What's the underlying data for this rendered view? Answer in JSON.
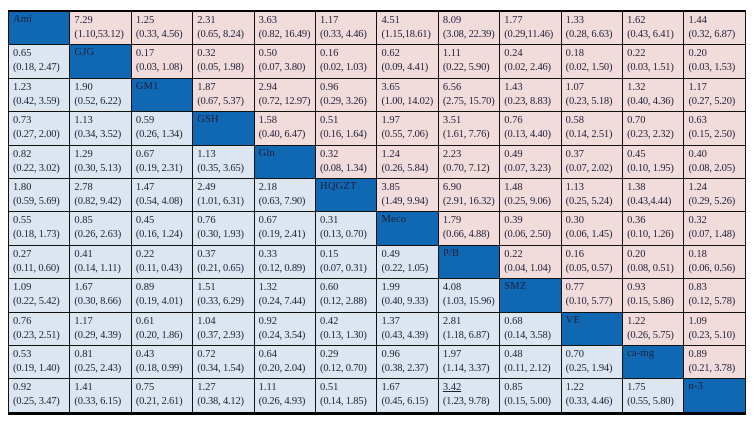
{
  "colors": {
    "diagonal_fill": "#1168b2",
    "upper_triangle_fill": "#f2dcdb",
    "lower_triangle_fill": "#dce6f1",
    "border": "#000000",
    "text": "#1e1e38"
  },
  "chart_data": {
    "type": "table",
    "treatments": [
      "Ami",
      "GJG",
      "GM1",
      "GSH",
      "Gln",
      "HQGZT",
      "Meco",
      "P/B",
      "SMZ",
      "VE",
      "ca-mg",
      "n-3"
    ],
    "matrix": [
      [
        {
          "label": "Ami"
        },
        {
          "est": "7.29",
          "ci": "(1.10,53.12)"
        },
        {
          "est": "1.25",
          "ci": "(0.33, 4.56)"
        },
        {
          "est": "2.31",
          "ci": "(0.65, 8.24)"
        },
        {
          "est": "3.63",
          "ci": "(0.82, 16.49)"
        },
        {
          "est": "1.17",
          "ci": "(0.33, 4.46)"
        },
        {
          "est": "4.51",
          "ci": "(1.15,18.61)"
        },
        {
          "est": "8.09",
          "ci": "(3.08, 22.39)"
        },
        {
          "est": "1.77",
          "ci": "(0.29,11.46)"
        },
        {
          "est": "1.33",
          "ci": "(0.28, 6.63)"
        },
        {
          "est": "1.62",
          "ci": "(0.43, 6.41)"
        },
        {
          "est": "1.44",
          "ci": "(0.32, 6.87)"
        }
      ],
      [
        {
          "est": "0.65",
          "ci": "(0.18, 2.47)"
        },
        {
          "label": "GJG"
        },
        {
          "est": "0.17",
          "ci": "(0.03, 1.08)"
        },
        {
          "est": "0.32",
          "ci": "(0.05, 1.98)"
        },
        {
          "est": "0.50",
          "ci": "(0.07, 3.80)"
        },
        {
          "est": "0.16",
          "ci": "(0.02, 1.03)"
        },
        {
          "est": "0.62",
          "ci": "(0.09, 4.41)"
        },
        {
          "est": "1.11",
          "ci": "(0.22, 5.90)"
        },
        {
          "est": "0.24",
          "ci": "(0.02, 2.46)"
        },
        {
          "est": "0.18",
          "ci": "(0.02, 1.50)"
        },
        {
          "est": "0.22",
          "ci": "(0.03, 1.51)"
        },
        {
          "est": "0.20",
          "ci": "(0.03, 1.53)"
        }
      ],
      [
        {
          "est": "1.23",
          "ci": "(0.42, 3.59)"
        },
        {
          "est": "1.90",
          "ci": "(0.52, 6.22)"
        },
        {
          "label": "GM1"
        },
        {
          "est": "1.87",
          "ci": "(0.67, 5.37)"
        },
        {
          "est": "2.94",
          "ci": "(0.72, 12.97)"
        },
        {
          "est": "0.96",
          "ci": "(0.29, 3.26)"
        },
        {
          "est": "3.65",
          "ci": "(1.00, 14.02)"
        },
        {
          "est": "6.56",
          "ci": "(2.75, 15.70)"
        },
        {
          "est": "1.43",
          "ci": "(0.23, 8.83)"
        },
        {
          "est": "1.07",
          "ci": "(0.23, 5.18)"
        },
        {
          "est": "1.32",
          "ci": "(0.40, 4.36)"
        },
        {
          "est": "1.17",
          "ci": "(0.27, 5.20)"
        }
      ],
      [
        {
          "est": "0.73",
          "ci": "(0.27, 2.00)"
        },
        {
          "est": "1.13",
          "ci": "(0.34, 3.52)"
        },
        {
          "est": "0.59",
          "ci": "(0.26, 1.34)"
        },
        {
          "label": "GSH"
        },
        {
          "est": "1.58",
          "ci": "(0.40, 6.47)"
        },
        {
          "est": "0.51",
          "ci": "(0.16, 1.64)"
        },
        {
          "est": "1.97",
          "ci": "(0.55, 7.06)"
        },
        {
          "est": "3.51",
          "ci": "(1.61, 7.76)"
        },
        {
          "est": "0.76",
          "ci": "(0.13, 4.40)"
        },
        {
          "est": "0.58",
          "ci": "(0.14, 2.51)"
        },
        {
          "est": "0.70",
          "ci": "(0.23, 2.32)"
        },
        {
          "est": "0.63",
          "ci": "(0.15, 2.50)"
        }
      ],
      [
        {
          "est": "0.82",
          "ci": "(0.22, 3.02)"
        },
        {
          "est": "1.29",
          "ci": "(0.30, 5.13)"
        },
        {
          "est": "0.67",
          "ci": "(0.19, 2.31)"
        },
        {
          "est": "1.13",
          "ci": "(0.35, 3.65)"
        },
        {
          "label": "Gln"
        },
        {
          "est": "0.32",
          "ci": "(0.08, 1.34)"
        },
        {
          "est": "1.24",
          "ci": "(0.26, 5.84)"
        },
        {
          "est": "2.23",
          "ci": "(0.70, 7.12)"
        },
        {
          "est": "0.49",
          "ci": "(0.07, 3.23)"
        },
        {
          "est": "0.37",
          "ci": "(0.07, 2.02)"
        },
        {
          "est": "0.45",
          "ci": "(0.10, 1.95)"
        },
        {
          "est": "0.40",
          "ci": "(0.08, 2.05)"
        }
      ],
      [
        {
          "est": "1.80",
          "ci": "(0.59, 5.69)"
        },
        {
          "est": "2.78",
          "ci": "(0.82, 9.42)"
        },
        {
          "est": "1.47",
          "ci": "(0.54, 4.08)"
        },
        {
          "est": "2.49",
          "ci": "(1.01, 6.31)"
        },
        {
          "est": "2.18",
          "ci": "(0.63, 7.90)"
        },
        {
          "label": "HQGZT"
        },
        {
          "est": "3.85",
          "ci": "(1.49, 9.94)"
        },
        {
          "est": "6.90",
          "ci": "(2.91, 16.32)"
        },
        {
          "est": "1.48",
          "ci": "(0.25, 9.06)"
        },
        {
          "est": "1.13",
          "ci": "(0.25, 5.24)"
        },
        {
          "est": "1.38",
          "ci": "(0.43,4.44)"
        },
        {
          "est": "1.24",
          "ci": "(0.29, 5.26)"
        }
      ],
      [
        {
          "est": "0.55",
          "ci": "(0.18, 1.73)"
        },
        {
          "est": "0.85",
          "ci": "(0.26, 2.63)"
        },
        {
          "est": "0.45",
          "ci": "(0.16, 1.24)"
        },
        {
          "est": "0.76",
          "ci": "(0.30, 1.93)"
        },
        {
          "est": "0.67",
          "ci": "(0.19, 2.41)"
        },
        {
          "est": "0.31",
          "ci": "(0.13, 0.70)"
        },
        {
          "label": "Meco"
        },
        {
          "est": "1.79",
          "ci": "(0.66, 4.88)"
        },
        {
          "est": "0.39",
          "ci": "(0.06, 2.50)"
        },
        {
          "est": "0.30",
          "ci": "(0.06, 1.45)"
        },
        {
          "est": "0.36",
          "ci": "(0.10, 1.26)"
        },
        {
          "est": "0.32",
          "ci": "(0.07, 1.48)"
        }
      ],
      [
        {
          "est": "0.27",
          "ci": "(0.11, 0.60)"
        },
        {
          "est": "0.41",
          "ci": "(0.14, 1.11)"
        },
        {
          "est": "0.22",
          "ci": "(0.11, 0.43)"
        },
        {
          "est": "0.37",
          "ci": "(0.21, 0.65)"
        },
        {
          "est": "0.33",
          "ci": "(0.12, 0.89)"
        },
        {
          "est": "0.15",
          "ci": "(0.07, 0.31)"
        },
        {
          "est": "0.49",
          "ci": "(0.22, 1.05)"
        },
        {
          "label": "P/B"
        },
        {
          "est": "0.22",
          "ci": "(0.04, 1.04)"
        },
        {
          "est": "0.16",
          "ci": "(0.05, 0.57)"
        },
        {
          "est": "0.20",
          "ci": "(0.08, 0.51)"
        },
        {
          "est": "0.18",
          "ci": "(0.06, 0.56)"
        }
      ],
      [
        {
          "est": "1.09",
          "ci": "(0.22, 5.42)"
        },
        {
          "est": "1.67",
          "ci": "(0.30, 8.66)"
        },
        {
          "est": "0.89",
          "ci": "(0.19, 4.01)"
        },
        {
          "est": "1.51",
          "ci": "(0.33, 6.29)"
        },
        {
          "est": "1.32",
          "ci": "(0.24, 7.44)"
        },
        {
          "est": "0.60",
          "ci": "(0.12, 2.88)"
        },
        {
          "est": "1.99",
          "ci": "(0.40, 9.33)"
        },
        {
          "est": "4.08",
          "ci": "(1.03, 15.96)"
        },
        {
          "label": "SMZ"
        },
        {
          "est": "0.77",
          "ci": "(0.10, 5.77)"
        },
        {
          "est": "0.93",
          "ci": "(0.15, 5.86)"
        },
        {
          "est": "0.83",
          "ci": "(0.12, 5.78)"
        }
      ],
      [
        {
          "est": "0.76",
          "ci": "(0.23, 2.51)"
        },
        {
          "est": "1.17",
          "ci": "(0.29, 4.39)"
        },
        {
          "est": "0.61",
          "ci": "(0.20, 1.86)"
        },
        {
          "est": "1.04",
          "ci": "(0.37, 2.93)"
        },
        {
          "est": "0.92",
          "ci": "(0.24, 3.54)"
        },
        {
          "est": "0.42",
          "ci": "(0.13, 1.30)"
        },
        {
          "est": "1.37",
          "ci": "(0.43, 4.39)"
        },
        {
          "est": "2.81",
          "ci": "(1.18, 6.87)"
        },
        {
          "est": "0.68",
          "ci": "(0.14, 3.58)"
        },
        {
          "label": "VE"
        },
        {
          "est": "1.22",
          "ci": "(0.26, 5.75)"
        },
        {
          "est": "1.09",
          "ci": "(0.23, 5.10)"
        }
      ],
      [
        {
          "est": "0.53",
          "ci": "(0.19, 1.40)"
        },
        {
          "est": "0.81",
          "ci": "(0.25, 2.43)"
        },
        {
          "est": "0.43",
          "ci": "(0.18, 0.99)"
        },
        {
          "est": "0.72",
          "ci": "(0.34, 1.54)"
        },
        {
          "est": "0.64",
          "ci": "(0.20, 2.04)"
        },
        {
          "est": "0.29",
          "ci": "(0.12, 0.70)"
        },
        {
          "est": "0.96",
          "ci": "(0.38, 2.37)"
        },
        {
          "est": "1.97",
          "ci": "(1.14, 3.37)"
        },
        {
          "est": "0.48",
          "ci": "(0.11, 2.12)"
        },
        {
          "est": "0.70",
          "ci": "(0.25, 1.94)"
        },
        {
          "label": "ca-mg"
        },
        {
          "est": "0.89",
          "ci": "(0.21, 3.78)"
        }
      ],
      [
        {
          "est": "0.92",
          "ci": "(0.25, 3.47)"
        },
        {
          "est": "1.41",
          "ci": "(0.33, 6.15)"
        },
        {
          "est": "0.75",
          "ci": "(0.21, 2.61)"
        },
        {
          "est": "1.27",
          "ci": "(0.38, 4.12)"
        },
        {
          "est": "1.11",
          "ci": "(0.26, 4.93)"
        },
        {
          "est": "0.51",
          "ci": "(0.14, 1.85)"
        },
        {
          "est": "1.67",
          "ci": "(0.45, 6.15)"
        },
        {
          "est": "3.42",
          "ci": "(1.23, 9.78)",
          "underline": true
        },
        {
          "est": "0.85",
          "ci": "(0.15, 5.00)"
        },
        {
          "est": "1.22",
          "ci": "(0.33, 4.46)"
        },
        {
          "est": "1.75",
          "ci": "(0.55, 5.80)"
        },
        {
          "label": "n-3"
        }
      ]
    ]
  }
}
